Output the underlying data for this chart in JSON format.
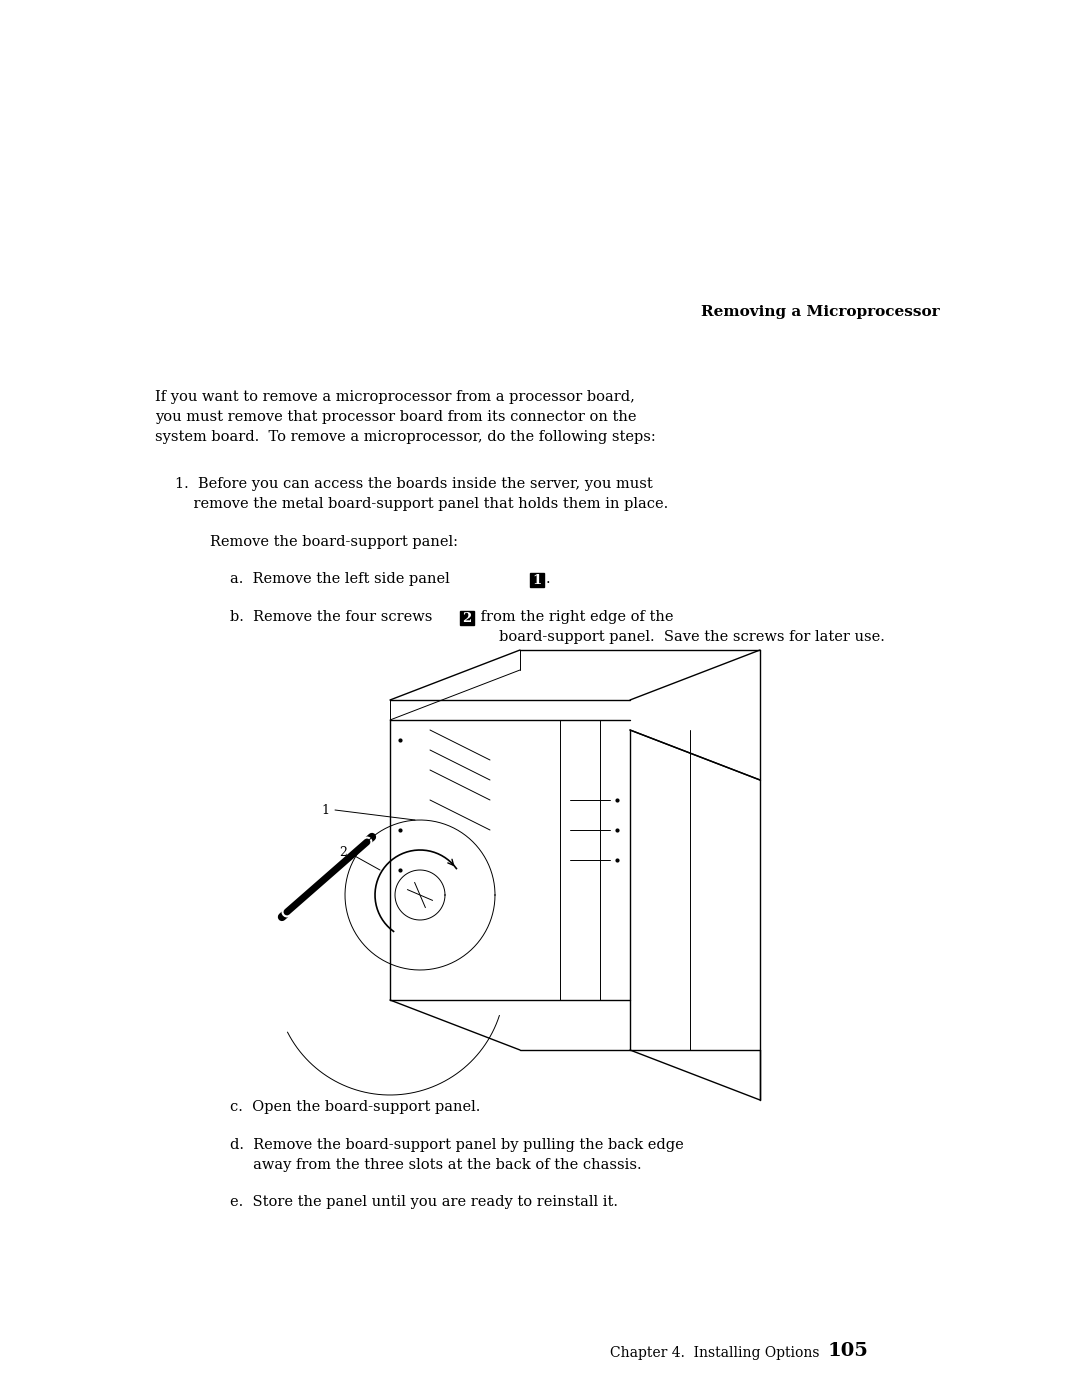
{
  "bg_color": "#ffffff",
  "title_text": "Removing a Microprocessor",
  "title_fontsize": 11,
  "intro_text": "If you want to remove a microprocessor from a processor board,\nyou must remove that processor board from its connector on the\nsystem board.  To remove a microprocessor, do the following steps:",
  "step1_text": "1.  Before you can access the boards inside the server, you must\n    remove the metal board-support panel that holds them in place.",
  "remove_text": "Remove the board-support panel:",
  "stepa_prefix": "a.  Remove the left side panel ",
  "stepb_prefix": "b.  Remove the four screws ",
  "stepb_suffix": " from the right edge of the\n     board-support panel.  Save the screws for later use.",
  "stepc_text": "c.  Open the board-support panel.",
  "stepd_text": "d.  Remove the board-support panel by pulling the back edge\n     away from the three slots at the back of the chassis.",
  "stepe_text": "e.  Store the panel until you are ready to reinstall it.",
  "footer_chapter": "Chapter 4.  Installing Options",
  "footer_page": "105",
  "main_fontsize": 10.5,
  "footer_fontsize": 10
}
